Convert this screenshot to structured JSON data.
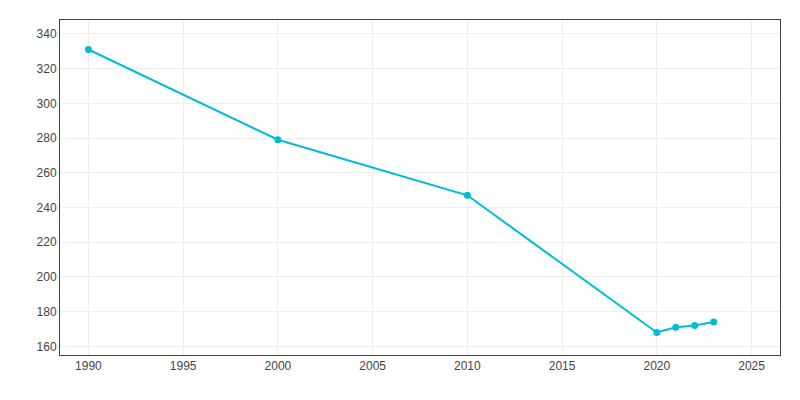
{
  "chart_data": {
    "type": "line",
    "x": [
      1990,
      2000,
      2010,
      2020,
      2021,
      2022,
      2023
    ],
    "values": [
      331,
      279,
      247,
      168,
      171,
      172,
      174
    ],
    "color": "#00BCD4",
    "marker": "circle",
    "xlim": [
      1988.5,
      2026.5
    ],
    "ylim": [
      155,
      348
    ],
    "xticks": [
      1990,
      1995,
      2000,
      2005,
      2010,
      2015,
      2020,
      2025
    ],
    "yticks": [
      160,
      180,
      200,
      220,
      240,
      260,
      280,
      300,
      320,
      340
    ],
    "grid": true
  }
}
